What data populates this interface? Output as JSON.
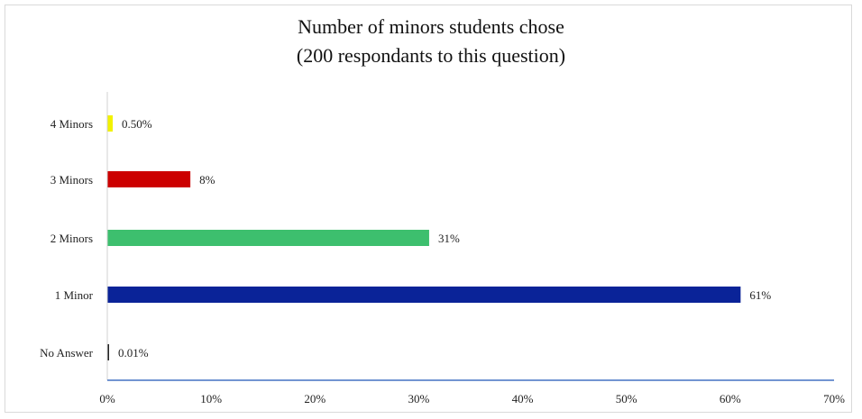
{
  "chart_data": {
    "type": "bar",
    "orientation": "horizontal",
    "title_line1": "Number of minors students chose",
    "title_line2": "(200 respondants to this question)",
    "categories": [
      "4 Minors",
      "3 Minors",
      "2 Minors",
      "1 Minor",
      "No Answer"
    ],
    "values": [
      0.5,
      8,
      31,
      61,
      0.01
    ],
    "data_labels": [
      "0.50%",
      "8%",
      "31%",
      "61%",
      "0.01%"
    ],
    "colors": [
      "#f2f200",
      "#cc0000",
      "#3dbf6e",
      "#0a2398",
      "#222222"
    ],
    "x_ticks": [
      "0%",
      "10%",
      "20%",
      "30%",
      "40%",
      "50%",
      "60%",
      "70%"
    ],
    "xlim": [
      0,
      70
    ],
    "xlabel": "",
    "ylabel": "",
    "axis_color": "#4472c4",
    "grid": false,
    "legend": "none"
  }
}
